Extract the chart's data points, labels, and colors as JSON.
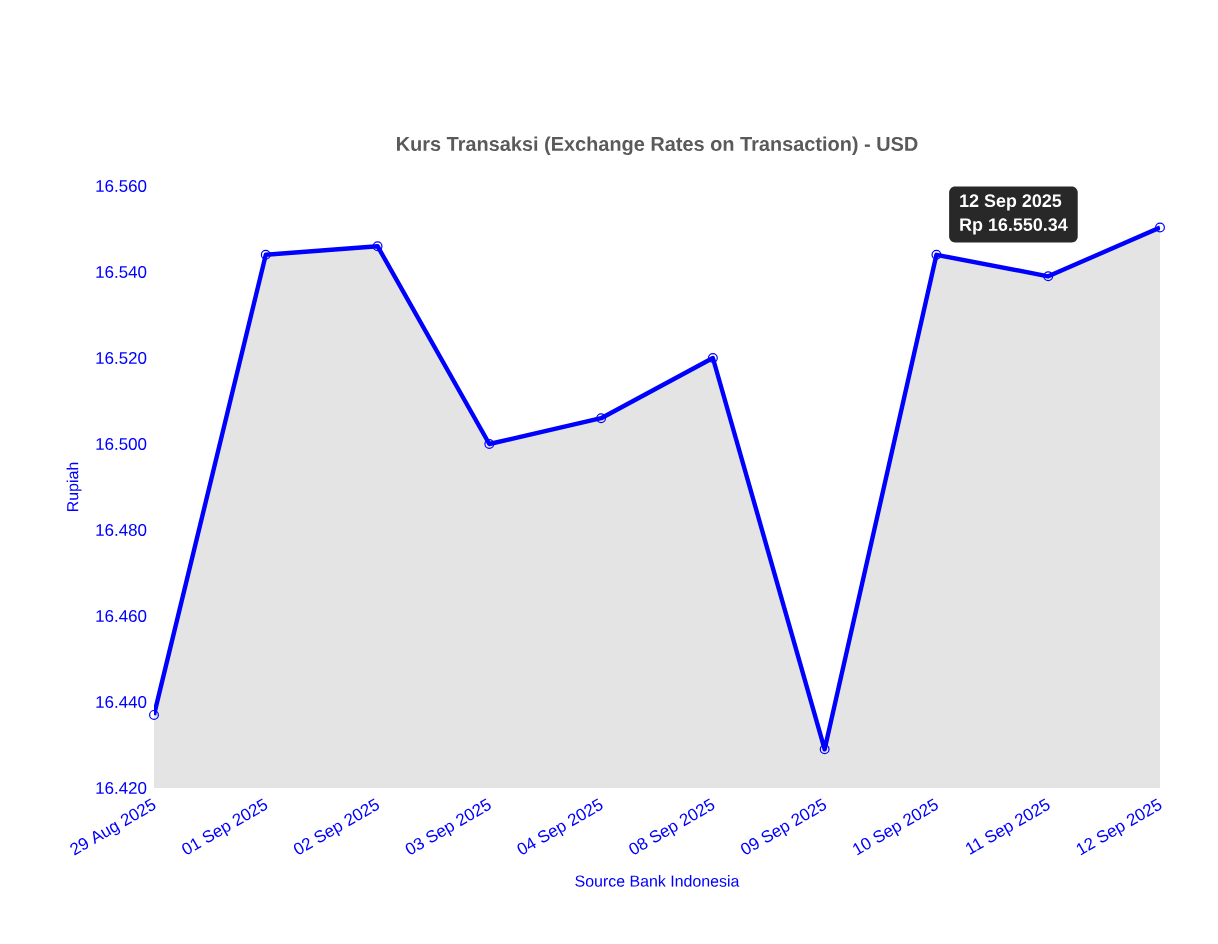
{
  "chart_data": {
    "type": "area",
    "title": "Kurs Transaksi (Exchange Rates on Transaction) - USD",
    "xlabel": "Source Bank Indonesia",
    "ylabel": "Rupiah",
    "categories": [
      "29 Aug 2025",
      "01 Sep 2025",
      "02 Sep 2025",
      "03 Sep 2025",
      "04 Sep 2025",
      "08 Sep 2025",
      "09 Sep 2025",
      "10 Sep 2025",
      "11 Sep 2025",
      "12 Sep 2025"
    ],
    "series": [
      {
        "color": "#0000ff",
        "values": [
          16437,
          16544,
          16546,
          16500,
          16506,
          16520,
          16429,
          16544,
          16539,
          16550.34
        ]
      }
    ],
    "ylim": [
      16420,
      16560
    ],
    "yticks": [
      {
        "value": 16420,
        "label": "16.420"
      },
      {
        "value": 16440,
        "label": "16.440"
      },
      {
        "value": 16460,
        "label": "16.460"
      },
      {
        "value": 16480,
        "label": "16.480"
      },
      {
        "value": 16500,
        "label": "16.500"
      },
      {
        "value": 16520,
        "label": "16.520"
      },
      {
        "value": 16540,
        "label": "16.540"
      },
      {
        "value": 16560,
        "label": "16.560"
      }
    ],
    "marker": "circle",
    "line_style": "solid",
    "annotations": [
      "12 Sep 2025",
      "Rp 16.550.34"
    ]
  }
}
